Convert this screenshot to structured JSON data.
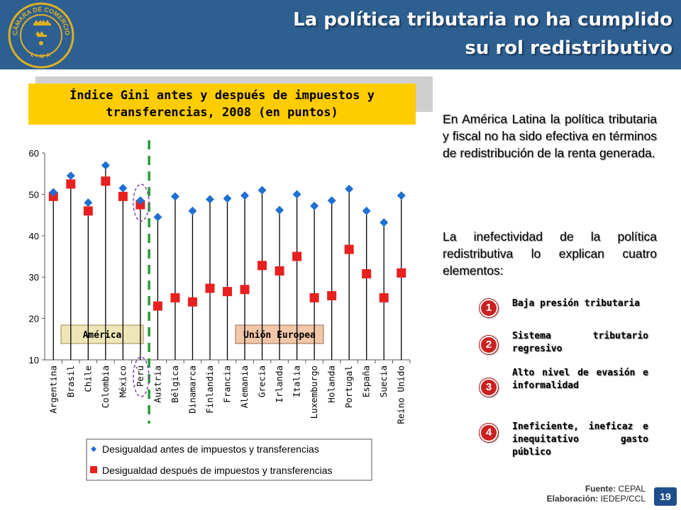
{
  "header": {
    "title_line1": "La política tributaria no ha cumplido",
    "title_line2": "su rol redistributivo",
    "logo_text_top": "CÁMARA DE COMERCIO",
    "logo_text_bottom": "LIMA"
  },
  "chart_title": {
    "line1": "Índice Gini antes y después de impuestos y",
    "line2": "transferencias, 2008 (en puntos)"
  },
  "chart_data": {
    "type": "scatter",
    "title": "Índice Gini antes y después de impuestos y transferencias, 2008 (en puntos)",
    "categories": [
      "Argentina",
      "Brasil",
      "Chile",
      "Colombia",
      "México",
      "Perú",
      "Austria",
      "Bélgica",
      "Dinamarca",
      "Finlandia",
      "Francia",
      "Alemania",
      "Grecia",
      "Irlanda",
      "Italia",
      "Luxemburgo",
      "Holanda",
      "Portugal",
      "España",
      "Suecia",
      "Reino Unido"
    ],
    "series": [
      {
        "name": "Desigualdad antes de impuestos y transferencias",
        "marker": "diamond",
        "color": "#1f6fd1",
        "values": [
          50.5,
          54.5,
          48,
          57,
          51.5,
          48.5,
          44.5,
          49.5,
          46,
          48.8,
          49,
          49.7,
          51,
          46.2,
          50,
          47.2,
          48.5,
          51.3,
          46,
          43.2,
          49.7
        ]
      },
      {
        "name": "Desigualdad después de impuestos y transferencias",
        "marker": "square",
        "color": "#e82020",
        "values": [
          49.5,
          52.5,
          46,
          53.2,
          49.5,
          47.5,
          23,
          25,
          24,
          27.3,
          26.5,
          27,
          32.8,
          31.5,
          35,
          25,
          25.5,
          36.7,
          30.8,
          25,
          31
        ]
      }
    ],
    "ylim": [
      10,
      60
    ],
    "yticks": [
      10,
      20,
      30,
      40,
      50,
      60
    ],
    "group_labels": [
      "América",
      "Unión Europea"
    ],
    "divider_after": "Perú",
    "highlight": "Perú"
  },
  "paragraphs": {
    "p1": "En América Latina la política tributaria y fiscal no ha sido efectiva en términos de redistribución de la renta generada.",
    "p2": "La inefectividad de la política redistributiva lo explican cuatro elementos:"
  },
  "elements": [
    {
      "num": "1",
      "text": "Baja presión tributaria"
    },
    {
      "num": "2",
      "text": "Sistema tributario regresivo"
    },
    {
      "num": "3",
      "text": "Alto nivel de evasión e informalidad"
    },
    {
      "num": "4",
      "text": "Ineficiente, ineficaz e inequitativo gasto público"
    }
  ],
  "source": {
    "fuente_label": "Fuente:",
    "fuente": "CEPAL",
    "elab_label": "Elaboración:",
    "elab": "IEDEP/CCL"
  },
  "page_number": "19",
  "colors": {
    "header": "#2d5f91",
    "title_box": "#ffcc00",
    "divider": "#2a9a3a",
    "highlight": "#7a3fb0"
  }
}
